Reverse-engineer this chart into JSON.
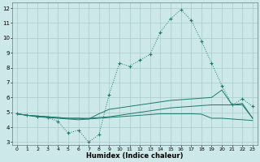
{
  "xlabel": "Humidex (Indice chaleur)",
  "bg_color": "#cce8e8",
  "grid_color": "#aacccc",
  "line_color": "#1a7a6e",
  "xlim": [
    -0.5,
    23.5
  ],
  "ylim": [
    2.8,
    12.4
  ],
  "xticks": [
    0,
    1,
    2,
    3,
    4,
    5,
    6,
    7,
    8,
    9,
    10,
    11,
    12,
    13,
    14,
    15,
    16,
    17,
    18,
    19,
    20,
    21,
    22,
    23
  ],
  "yticks": [
    3,
    4,
    5,
    6,
    7,
    8,
    9,
    10,
    11,
    12
  ],
  "series1_x": [
    0,
    1,
    2,
    3,
    4,
    5,
    6,
    7,
    8,
    9,
    10,
    11,
    12,
    13,
    14,
    15,
    16,
    17,
    18,
    19,
    20,
    21,
    22,
    23
  ],
  "series1_y": [
    4.9,
    4.8,
    4.7,
    4.65,
    4.4,
    3.6,
    3.8,
    3.0,
    3.5,
    6.2,
    8.3,
    8.1,
    8.5,
    8.9,
    10.4,
    11.3,
    11.9,
    11.2,
    9.8,
    8.3,
    6.8,
    5.5,
    5.9,
    5.4
  ],
  "series2_x": [
    0,
    1,
    2,
    3,
    4,
    5,
    6,
    7,
    8,
    9,
    10,
    11,
    12,
    13,
    14,
    15,
    16,
    17,
    18,
    19,
    20,
    21,
    22,
    23
  ],
  "series2_y": [
    4.9,
    4.8,
    4.7,
    4.65,
    4.6,
    4.55,
    4.5,
    4.55,
    4.9,
    5.2,
    5.3,
    5.4,
    5.5,
    5.6,
    5.7,
    5.8,
    5.85,
    5.9,
    5.95,
    6.0,
    6.5,
    5.5,
    5.6,
    4.6
  ],
  "series3_x": [
    0,
    1,
    2,
    3,
    4,
    5,
    6,
    7,
    8,
    9,
    10,
    11,
    12,
    13,
    14,
    15,
    16,
    17,
    18,
    19,
    20,
    21,
    22,
    23
  ],
  "series3_y": [
    4.9,
    4.8,
    4.75,
    4.7,
    4.65,
    4.6,
    4.6,
    4.6,
    4.65,
    4.7,
    4.8,
    4.9,
    5.0,
    5.1,
    5.2,
    5.3,
    5.35,
    5.4,
    5.45,
    5.5,
    5.5,
    5.5,
    5.5,
    4.6
  ],
  "series4_x": [
    0,
    1,
    2,
    3,
    4,
    5,
    6,
    7,
    8,
    9,
    10,
    11,
    12,
    13,
    14,
    15,
    16,
    17,
    18,
    19,
    20,
    21,
    22,
    23
  ],
  "series4_y": [
    4.9,
    4.8,
    4.75,
    4.7,
    4.65,
    4.6,
    4.6,
    4.55,
    4.6,
    4.65,
    4.7,
    4.75,
    4.8,
    4.85,
    4.9,
    4.9,
    4.9,
    4.9,
    4.88,
    4.6,
    4.6,
    4.55,
    4.5,
    4.45
  ]
}
